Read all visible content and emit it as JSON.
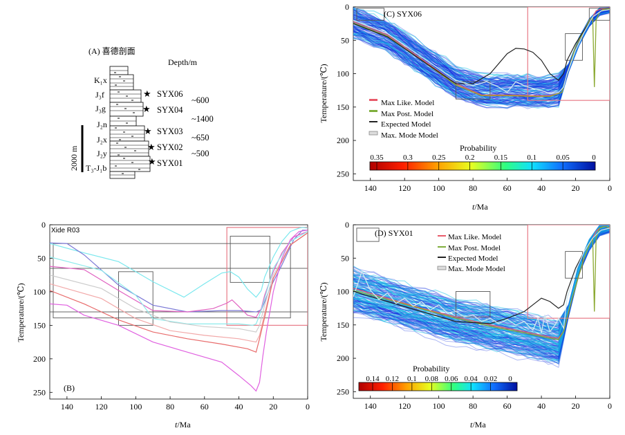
{
  "panelA": {
    "title": "(A) 喜德剖面",
    "depth_label": "Depth/m",
    "scale_bar": "2000 m",
    "formations": [
      "K₁x",
      "J₃f",
      "J₃g",
      "J₂n",
      "J₂x",
      "J₂y",
      "T₃-J₁b"
    ],
    "samples": [
      {
        "id": "SYX06",
        "formation": "J₃f"
      },
      {
        "id": "SYX04",
        "formation": "J₃g"
      },
      {
        "id": "SYX03",
        "formation": "J₂x"
      },
      {
        "id": "SYX02",
        "formation": "J₂y"
      },
      {
        "id": "SYX01",
        "formation": "T₃-J₁b"
      }
    ],
    "depths": [
      "~600",
      "~1400",
      "~650",
      "~500"
    ]
  },
  "panelB": {
    "label": "(B)",
    "sample_label": "Xide R03",
    "xlabel_italic": "t",
    "xlabel_rest": "/Ma",
    "ylabel": "Temperature/(℃)"
  },
  "panelC": {
    "label": "(C) SYX06",
    "xlabel_italic": "t",
    "xlabel_rest": "/Ma",
    "ylabel": "Temperature/(℃)",
    "legend": [
      "Max Like. Model",
      "Max Post. Model",
      "Expected Model",
      "Max. Mode Model"
    ],
    "colorbar_title": "Probability",
    "colorbar_ticks": [
      "0.35",
      "0.3",
      "0.25",
      "0.2",
      "0.15",
      "0.1",
      "0.05",
      "0"
    ]
  },
  "panelD": {
    "label": "(D) SYX01",
    "xlabel_italic": "t",
    "xlabel_rest": "/Ma",
    "ylabel": "Temperature/(℃)",
    "legend": [
      "Max Like. Model",
      "Max Post. Model",
      "Expected Model",
      "Max. Mode Model"
    ],
    "colorbar_title": "Probability",
    "colorbar_ticks": [
      "0.14",
      "0.12",
      "0.1",
      "0.08",
      "0.06",
      "0.04",
      "0.02",
      "0"
    ]
  },
  "colors": {
    "max_like": "#e85a6a",
    "max_post": "#7fae3c",
    "expected": "#222222",
    "constraint_box": "#e87a86",
    "cloud_blue": "#1030e0",
    "cloud_cyan": "#1ec8e8"
  },
  "chart_data": [
    {
      "type": "line",
      "panel": "B",
      "title": "Xide R03",
      "xlabel": "t/Ma",
      "ylabel": "Temperature/(℃)",
      "xlim": [
        150,
        0
      ],
      "ylim": [
        0,
        260
      ],
      "x_ticks": [
        140,
        120,
        100,
        80,
        60,
        40,
        20,
        0
      ],
      "y_ticks": [
        0,
        50,
        100,
        150,
        200,
        250
      ],
      "hlines": [
        65,
        130
      ],
      "boxes": [
        [
          90,
          110,
          70,
          150
        ],
        [
          47,
          0,
          4,
          150
        ],
        [
          22,
          45,
          17,
          86
        ],
        [
          148,
          10,
          139,
          28
        ]
      ],
      "series": [
        {
          "name": "cyan",
          "color": "#7ae8ee",
          "x": [
            150,
            130,
            110,
            90,
            72,
            60,
            50,
            45,
            40,
            35,
            30,
            27,
            25,
            20,
            15,
            10,
            5,
            3,
            0
          ],
          "y": [
            28,
            42,
            55,
            85,
            108,
            88,
            72,
            70,
            78,
            96,
            108,
            98,
            78,
            48,
            25,
            10,
            5,
            4,
            5
          ]
        },
        {
          "name": "blue",
          "color": "#7b78d6",
          "x": [
            150,
            140,
            130,
            110,
            90,
            70,
            50,
            40,
            35,
            30,
            27,
            25,
            22,
            15,
            8,
            3,
            0
          ],
          "y": [
            27,
            28,
            45,
            90,
            120,
            130,
            128,
            128,
            129,
            130,
            127,
            115,
            95,
            60,
            22,
            8,
            8
          ]
        },
        {
          "name": "magenta_mid",
          "color": "#e060c0",
          "x": [
            150,
            130,
            110,
            90,
            70,
            55,
            47,
            44,
            40,
            35,
            30,
            27,
            25,
            20,
            15,
            8,
            0
          ],
          "y": [
            62,
            67,
            98,
            128,
            130,
            125,
            117,
            112,
            122,
            135,
            138,
            125,
            105,
            70,
            42,
            18,
            10
          ]
        },
        {
          "name": "light_cyan",
          "color": "#8cebec",
          "x": [
            150,
            120,
            100,
            90,
            70,
            50,
            40,
            32,
            30,
            28,
            25,
            20,
            10,
            0
          ],
          "y": [
            48,
            68,
            105,
            140,
            148,
            148,
            148,
            150,
            148,
            135,
            110,
            65,
            25,
            10
          ]
        },
        {
          "name": "light_grey",
          "color": "#cccccc",
          "x": [
            150,
            120,
            100,
            80,
            60,
            40,
            30,
            28,
            25,
            20,
            10,
            0
          ],
          "y": [
            75,
            95,
            125,
            145,
            152,
            155,
            160,
            150,
            120,
            75,
            30,
            12
          ]
        },
        {
          "name": "light_red",
          "color": "#f2a8a8",
          "x": [
            150,
            120,
            100,
            80,
            60,
            40,
            30,
            28,
            25,
            20,
            10,
            0
          ],
          "y": [
            88,
            110,
            140,
            158,
            165,
            170,
            175,
            165,
            132,
            80,
            30,
            12
          ]
        },
        {
          "name": "red",
          "color": "#e86a6a",
          "x": [
            150,
            130,
            110,
            90,
            70,
            50,
            35,
            30,
            28,
            25,
            20,
            10,
            0
          ],
          "y": [
            98,
            118,
            142,
            160,
            170,
            178,
            185,
            190,
            170,
            138,
            80,
            30,
            12
          ]
        },
        {
          "name": "magenta",
          "color": "#e060e0",
          "x": [
            150,
            140,
            130,
            110,
            90,
            70,
            50,
            40,
            33,
            30,
            28,
            26,
            24,
            20,
            15,
            10,
            5,
            0
          ],
          "y": [
            118,
            120,
            135,
            150,
            175,
            190,
            205,
            225,
            240,
            248,
            235,
            195,
            160,
            100,
            50,
            22,
            10,
            8
          ]
        }
      ]
    },
    {
      "type": "line",
      "panel": "C",
      "title": "SYX06",
      "xlabel": "t/Ma",
      "ylabel": "Temperature/(℃)",
      "xlim": [
        150,
        0
      ],
      "ylim": [
        0,
        260
      ],
      "x_ticks": [
        140,
        120,
        100,
        80,
        60,
        40,
        20,
        0
      ],
      "y_ticks": [
        0,
        50,
        100,
        150,
        200,
        250
      ],
      "boxes": [
        [
          148,
          132,
          2,
          20
        ],
        [
          90,
          70,
          112,
          138
        ],
        [
          48,
          0,
          0,
          140
        ],
        [
          26,
          16,
          40,
          80
        ],
        [
          12,
          0,
          2,
          20
        ]
      ],
      "series": [
        {
          "name": "Max Like. Model",
          "color": "#e85a6a",
          "x": [
            150,
            130,
            110,
            90,
            75,
            60,
            45,
            35,
            28,
            25,
            20,
            15,
            10,
            8,
            5,
            3,
            0
          ],
          "y": [
            22,
            42,
            78,
            115,
            132,
            132,
            133,
            133,
            128,
            100,
            60,
            35,
            15,
            6,
            3,
            3,
            3
          ]
        },
        {
          "name": "Max Post. Model",
          "color": "#8aa830",
          "x": [
            150,
            130,
            110,
            90,
            75,
            60,
            45,
            35,
            28,
            25,
            20,
            15,
            12,
            10,
            9,
            8,
            6,
            4,
            2,
            0
          ],
          "y": [
            24,
            44,
            80,
            117,
            133,
            133,
            134,
            134,
            128,
            100,
            60,
            35,
            20,
            15,
            120,
            20,
            8,
            4,
            3,
            3
          ]
        },
        {
          "name": "Expected Model",
          "color": "#222222",
          "x": [
            150,
            130,
            110,
            90,
            80,
            70,
            60,
            55,
            50,
            45,
            40,
            35,
            30,
            27,
            25,
            20,
            15,
            10,
            5,
            0
          ],
          "y": [
            25,
            45,
            80,
            115,
            115,
            100,
            70,
            62,
            63,
            68,
            80,
            100,
            110,
            100,
            80,
            55,
            35,
            15,
            6,
            4
          ]
        },
        {
          "name": "Max. Mode Model",
          "color": "#d0e8ee",
          "x": [
            150,
            130,
            110,
            90,
            80,
            72,
            65,
            60,
            55,
            50,
            45,
            40,
            35,
            30,
            27,
            25,
            20,
            15,
            10,
            5,
            0
          ],
          "y": [
            20,
            40,
            75,
            110,
            118,
            112,
            120,
            128,
            112,
            118,
            122,
            125,
            130,
            128,
            120,
            100,
            65,
            38,
            15,
            6,
            4
          ]
        }
      ],
      "colorbar": {
        "label": "Probability",
        "ticks": [
          0.35,
          0.3,
          0.25,
          0.2,
          0.15,
          0.1,
          0.05,
          0
        ]
      }
    },
    {
      "type": "line",
      "panel": "D",
      "title": "SYX01",
      "xlabel": "t/Ma",
      "ylabel": "Temperature/(℃)",
      "xlim": [
        150,
        0
      ],
      "ylim": [
        0,
        260
      ],
      "x_ticks": [
        140,
        120,
        100,
        80,
        60,
        40,
        20,
        0
      ],
      "y_ticks": [
        0,
        50,
        100,
        150,
        200,
        250
      ],
      "boxes": [
        [
          148,
          135,
          5,
          25
        ],
        [
          90,
          70,
          100,
          138
        ],
        [
          48,
          0,
          0,
          140
        ],
        [
          26,
          16,
          40,
          80
        ]
      ],
      "series": [
        {
          "name": "Max Like. Model",
          "color": "#e85a6a",
          "x": [
            150,
            130,
            110,
            90,
            70,
            50,
            35,
            30,
            27,
            25,
            22,
            18,
            15,
            12,
            10,
            8,
            6,
            4,
            2,
            0
          ],
          "y": [
            95,
            110,
            125,
            138,
            150,
            160,
            168,
            170,
            160,
            140,
            110,
            75,
            50,
            30,
            20,
            10,
            5,
            3,
            3,
            5
          ]
        },
        {
          "name": "Max Post. Model",
          "color": "#8aa830",
          "x": [
            150,
            130,
            110,
            90,
            70,
            50,
            35,
            30,
            27,
            25,
            22,
            18,
            15,
            12,
            10,
            9,
            8,
            6,
            4,
            2,
            0
          ],
          "y": [
            98,
            112,
            126,
            140,
            152,
            162,
            170,
            172,
            160,
            140,
            110,
            75,
            50,
            30,
            20,
            130,
            20,
            5,
            3,
            3,
            5
          ]
        },
        {
          "name": "Expected Model",
          "color": "#222222",
          "x": [
            150,
            130,
            110,
            90,
            70,
            60,
            50,
            45,
            40,
            35,
            30,
            27,
            25,
            20,
            15,
            10,
            5,
            0
          ],
          "y": [
            100,
            115,
            130,
            145,
            148,
            140,
            130,
            120,
            110,
            115,
            125,
            120,
            100,
            65,
            40,
            20,
            8,
            5
          ]
        },
        {
          "name": "Max. Mode Model",
          "color": "#d0e8ee",
          "x": [
            150,
            145,
            140,
            135,
            130,
            125,
            120,
            115,
            110,
            105,
            100,
            95,
            90,
            85,
            80,
            75,
            70,
            65,
            60,
            55,
            50,
            45,
            42,
            40,
            38,
            35,
            32,
            30,
            27,
            25,
            20,
            15,
            10,
            5,
            0
          ],
          "y": [
            108,
            70,
            98,
            112,
            102,
            118,
            110,
            122,
            115,
            128,
            120,
            132,
            130,
            138,
            135,
            145,
            140,
            148,
            142,
            150,
            145,
            158,
            140,
            162,
            135,
            160,
            150,
            140,
            155,
            110,
            70,
            40,
            20,
            8,
            5
          ]
        }
      ],
      "colorbar": {
        "label": "Probability",
        "ticks": [
          0.14,
          0.12,
          0.1,
          0.08,
          0.06,
          0.04,
          0.02,
          0
        ]
      }
    }
  ]
}
